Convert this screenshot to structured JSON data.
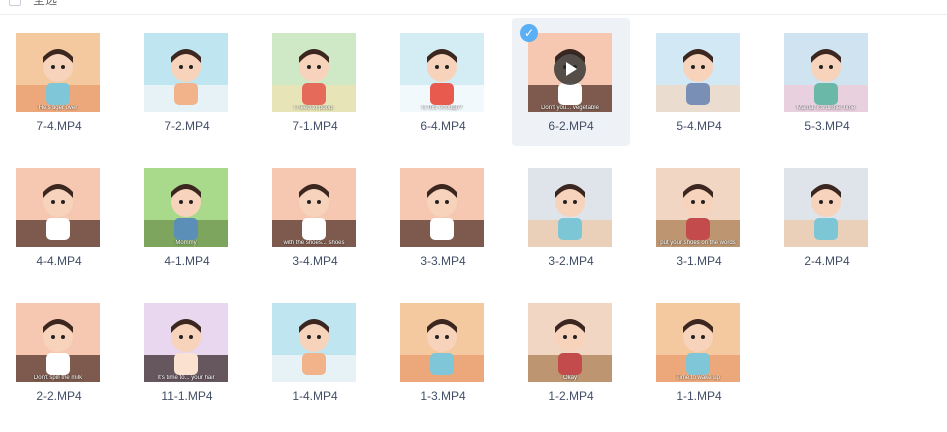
{
  "toolbar": {
    "select_all_label": "全选"
  },
  "videos": [
    {
      "name": "7-4.MP4",
      "subtitle": "He's tiger over",
      "scene": "bedroom"
    },
    {
      "name": "7-2.MP4",
      "subtitle": "",
      "scene": "bath"
    },
    {
      "name": "7-1.MP4",
      "subtitle": "I need to poop.",
      "scene": "potty"
    },
    {
      "name": "6-4.MP4",
      "subtitle": "Is this enough?",
      "scene": "kitchen"
    },
    {
      "name": "6-2.MP4",
      "subtitle": "Don't you... vegetable",
      "scene": "closeup",
      "selected": true
    },
    {
      "name": "5-4.MP4",
      "subtitle": "",
      "scene": "room"
    },
    {
      "name": "5-3.MP4",
      "subtitle": "Mama, it's dinner time",
      "scene": "stairs"
    },
    {
      "name": "4-4.MP4",
      "subtitle": "",
      "scene": "closeup"
    },
    {
      "name": "4-1.MP4",
      "subtitle": "Mommy",
      "scene": "park"
    },
    {
      "name": "3-4.MP4",
      "subtitle": "with the shoes... shoes",
      "scene": "closeup"
    },
    {
      "name": "3-3.MP4",
      "subtitle": "",
      "scene": "closeup"
    },
    {
      "name": "3-2.MP4",
      "subtitle": "",
      "scene": "living"
    },
    {
      "name": "3-1.MP4",
      "subtitle": "put your shoes on the words",
      "scene": "hall"
    },
    {
      "name": "2-4.MP4",
      "subtitle": "",
      "scene": "living"
    },
    {
      "name": "2-2.MP4",
      "subtitle": "Don't spill the milk",
      "scene": "closeup"
    },
    {
      "name": "11-1.MP4",
      "subtitle": "It's time to... your hair",
      "scene": "portrait"
    },
    {
      "name": "1-4.MP4",
      "subtitle": "",
      "scene": "bath"
    },
    {
      "name": "1-3.MP4",
      "subtitle": "",
      "scene": "bedroom"
    },
    {
      "name": "1-2.MP4",
      "subtitle": "Okay",
      "scene": "hall"
    },
    {
      "name": "1-1.MP4",
      "subtitle": "Time to wake up",
      "scene": "bedroom"
    }
  ],
  "colors": {
    "selected_bg": "#eef2f7",
    "check_badge": "#5bb0f5",
    "filename_text": "#424e66"
  }
}
